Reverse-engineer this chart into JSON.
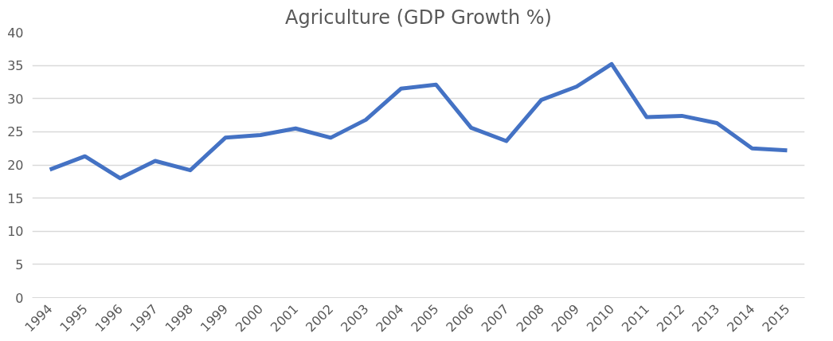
{
  "chart_data": {
    "type": "line",
    "title": "Agriculture (GDP Growth %)",
    "categories": [
      "1994",
      "1995",
      "1996",
      "1997",
      "1998",
      "1999",
      "2000",
      "2001",
      "2002",
      "2003",
      "2004",
      "2005",
      "2006",
      "2007",
      "2008",
      "2009",
      "2010",
      "2011",
      "2012",
      "2013",
      "2014",
      "2015"
    ],
    "series": [
      {
        "color": "#4472c4",
        "values": [
          19.3,
          21.3,
          18.0,
          20.6,
          19.2,
          24.1,
          24.5,
          25.5,
          24.1,
          26.8,
          31.5,
          32.1,
          25.6,
          23.6,
          29.8,
          31.8,
          35.2,
          27.2,
          27.4,
          26.3,
          22.5,
          22.2
        ]
      }
    ],
    "ylim": [
      0,
      40
    ],
    "yticks": [
      0,
      5,
      10,
      15,
      20,
      25,
      30,
      35,
      40
    ],
    "grid": "y",
    "marker": "none",
    "line_style": "solid"
  }
}
